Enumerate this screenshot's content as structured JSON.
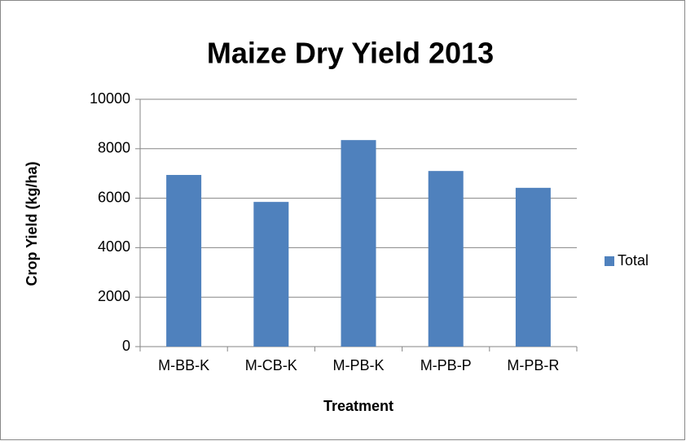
{
  "chart_data": {
    "type": "bar",
    "title": "Maize Dry Yield 2013",
    "x_label": "Treatment",
    "y_label": "Crop Yield (kg/ha)",
    "categories": [
      "M-BB-K",
      "M-CB-K",
      "M-PB-K",
      "M-PB-P",
      "M-PB-R"
    ],
    "series": [
      {
        "name": "Total",
        "color": "#4f81bd",
        "values": [
          6940,
          5850,
          8350,
          7100,
          6420
        ]
      }
    ],
    "ylim": [
      0,
      10000
    ],
    "yticks": [
      0,
      2000,
      4000,
      6000,
      8000,
      10000
    ],
    "grid": true,
    "legend": "right"
  }
}
